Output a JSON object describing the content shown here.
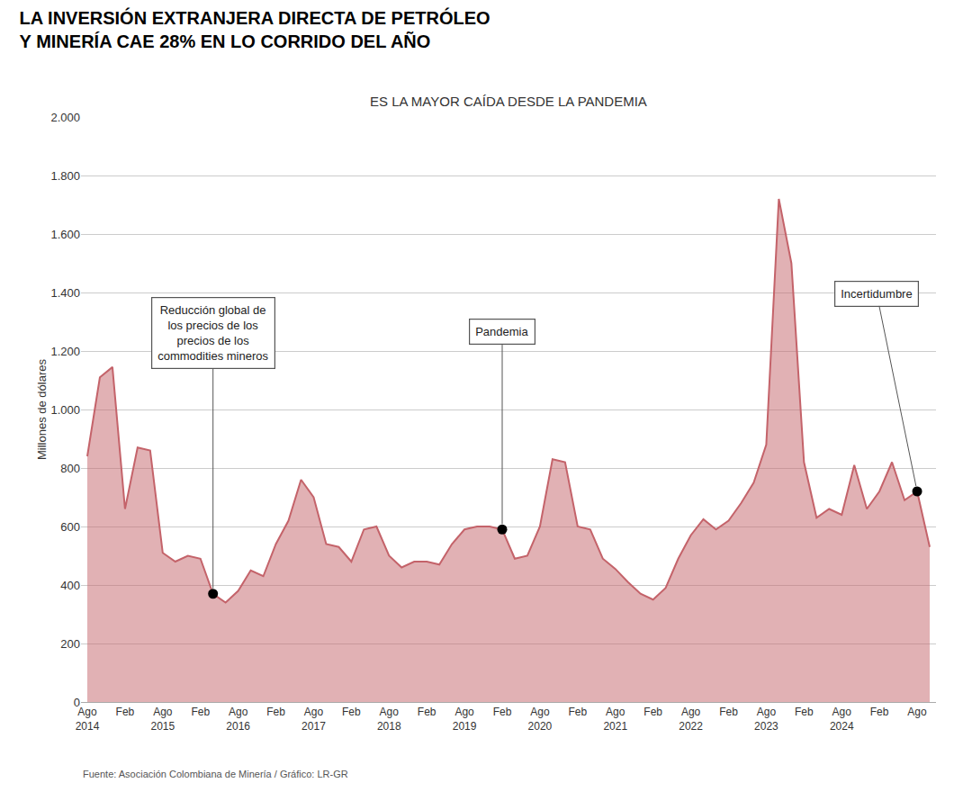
{
  "chart_data": {
    "type": "area",
    "title": "LA INVERSIÓN EXTRANJERA DIRECTA DE PETRÓLEO\nY MINERÍA CAE 28% EN LO CORRIDO DEL AÑO",
    "subtitle": "ES LA MAYOR CAÍDA DESDE LA PANDEMIA",
    "ylabel": "Millones de dólares",
    "source": "Fuente: Asociación Colombiana de Minería / Gráfico: LR-GR",
    "categories": [
      "Ago\n2014",
      null,
      null,
      "Feb",
      null,
      null,
      "Ago\n2015",
      null,
      null,
      "Feb",
      null,
      null,
      "Ago\n2016",
      null,
      null,
      "Feb",
      null,
      null,
      "Ago\n2017",
      null,
      null,
      "Feb",
      null,
      null,
      "Ago\n2018",
      null,
      null,
      "Feb",
      null,
      null,
      "Ago\n2019",
      null,
      null,
      "Feb",
      null,
      null,
      "Ago\n2020",
      null,
      null,
      "Feb",
      null,
      null,
      "Ago\n2021",
      null,
      null,
      "Feb",
      null,
      null,
      "Ago\n2022",
      null,
      null,
      "Feb",
      null,
      null,
      "Ago\n2023",
      null,
      null,
      "Feb",
      null,
      null,
      "Ago\n2024",
      null,
      null,
      "Feb",
      null,
      null,
      "Ago",
      null
    ],
    "values": [
      840,
      1110,
      1145,
      660,
      870,
      860,
      510,
      480,
      500,
      490,
      370,
      340,
      380,
      450,
      430,
      540,
      620,
      760,
      700,
      540,
      530,
      480,
      590,
      600,
      500,
      460,
      480,
      480,
      470,
      540,
      590,
      600,
      600,
      590,
      490,
      500,
      600,
      830,
      820,
      600,
      590,
      490,
      455,
      410,
      370,
      350,
      390,
      490,
      570,
      625,
      590,
      620,
      680,
      750,
      880,
      1720,
      1500,
      820,
      630,
      660,
      640,
      810,
      660,
      720,
      820,
      690,
      720,
      530
    ],
    "color": "#C4636A",
    "ylim": [
      0,
      2000
    ],
    "yticks": [
      0,
      200,
      400,
      600,
      800,
      {
        "value": 1000,
        "label": "1.000"
      },
      {
        "value": 1200,
        "label": "1.200"
      },
      {
        "value": 1400,
        "label": "1.400"
      },
      {
        "value": 1600,
        "label": "1.600"
      },
      {
        "value": 1800,
        "label": "1.800"
      },
      {
        "value": 2000,
        "label": "2.000"
      }
    ],
    "grid": true,
    "annotations": [
      {
        "x": 10,
        "text": "Reducción global de\nlos precios de los\nprecios de los\ncommodities mineros"
      },
      {
        "x": 33,
        "text": "Pandemia"
      },
      {
        "x": 66,
        "text": "Incertidumbre"
      }
    ]
  }
}
